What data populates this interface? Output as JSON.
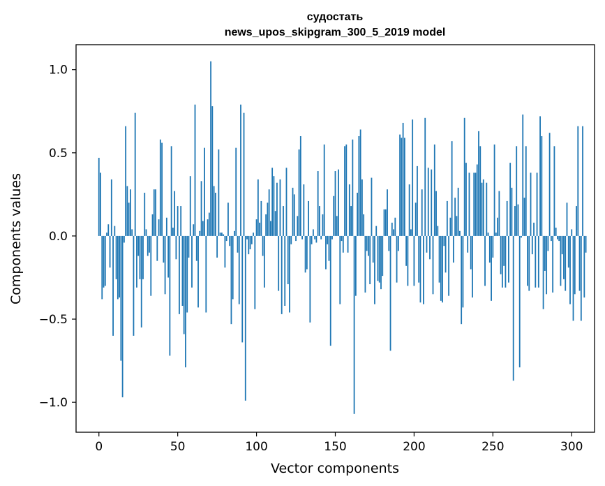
{
  "chart_data": {
    "type": "bar",
    "title_line1": "судостать",
    "title_line2": "news_upos_skipgram_300_5_2019 model",
    "xlabel": "Vector components",
    "ylabel": "Components values",
    "xlim": [
      -14.5,
      314.5
    ],
    "ylim": [
      -1.18,
      1.15
    ],
    "xticks": [
      0,
      50,
      100,
      150,
      200,
      250,
      300
    ],
    "xtick_labels": [
      "0",
      "50",
      "100",
      "150",
      "200",
      "250",
      "300"
    ],
    "yticks": [
      -1.0,
      -0.5,
      0.0,
      0.5,
      1.0
    ],
    "ytick_labels": [
      "−1.0",
      "−0.5",
      "0.0",
      "0.5",
      "1.0"
    ],
    "bar_color": "#1f77b4",
    "values": [
      0.47,
      0.38,
      -0.38,
      -0.31,
      -0.3,
      0.02,
      0.07,
      -0.19,
      0.34,
      -0.6,
      0.06,
      -0.26,
      -0.38,
      -0.37,
      -0.75,
      -0.97,
      -0.04,
      0.66,
      0.3,
      0.2,
      0.28,
      0.04,
      -0.6,
      0.74,
      -0.31,
      -0.12,
      -0.26,
      -0.55,
      -0.26,
      0.26,
      0.04,
      -0.12,
      -0.1,
      -0.36,
      0.13,
      0.28,
      0.28,
      -0.15,
      0.1,
      0.58,
      0.56,
      -0.16,
      -0.35,
      0.11,
      -0.25,
      -0.72,
      0.54,
      0.05,
      0.27,
      -0.14,
      0.18,
      -0.47,
      0.18,
      -0.42,
      -0.59,
      -0.79,
      -0.46,
      -0.13,
      0.36,
      -0.31,
      0.07,
      0.79,
      -0.15,
      -0.43,
      0.03,
      0.33,
      0.09,
      0.53,
      -0.46,
      0.1,
      0.14,
      1.05,
      0.78,
      0.3,
      0.26,
      -0.13,
      0.52,
      0.02,
      0.02,
      0.01,
      -0.19,
      -0.03,
      0.2,
      -0.06,
      -0.53,
      -0.38,
      0.03,
      0.53,
      -0.1,
      -0.41,
      0.79,
      -0.64,
      0.74,
      -0.99,
      -0.02,
      -0.11,
      -0.08,
      -0.05,
      0.02,
      -0.44,
      0.1,
      0.34,
      0.08,
      0.21,
      -0.12,
      -0.31,
      0.13,
      0.2,
      0.28,
      0.09,
      0.41,
      0.36,
      0.15,
      0.32,
      -0.33,
      0.34,
      -0.47,
      0.18,
      -0.42,
      0.41,
      -0.29,
      -0.46,
      -0.05,
      0.29,
      0.25,
      -0.03,
      0.12,
      0.52,
      0.6,
      -0.02,
      0.31,
      -0.22,
      -0.2,
      0.21,
      -0.52,
      -0.05,
      0.04,
      -0.02,
      -0.04,
      0.39,
      0.18,
      -0.02,
      0.13,
      0.55,
      -0.2,
      -0.05,
      -0.15,
      -0.66,
      -0.02,
      0.24,
      0.39,
      0.12,
      0.4,
      -0.41,
      -0.03,
      -0.1,
      0.54,
      0.55,
      -0.1,
      0.31,
      0.18,
      0.58,
      -1.07,
      -0.36,
      0.26,
      0.6,
      0.64,
      0.34,
      0.13,
      -0.34,
      -0.09,
      -0.12,
      -0.29,
      0.35,
      -0.16,
      -0.41,
      0.06,
      -0.27,
      -0.28,
      -0.32,
      -0.24,
      0.16,
      0.16,
      0.28,
      -0.09,
      -0.69,
      0.08,
      0.04,
      0.11,
      -0.28,
      -0.09,
      0.61,
      0.59,
      0.68,
      0.59,
      -0.18,
      -0.3,
      0.31,
      0.04,
      0.7,
      -0.3,
      0.2,
      0.42,
      -0.28,
      -0.4,
      0.28,
      -0.41,
      0.71,
      -0.1,
      0.41,
      -0.14,
      0.4,
      -0.35,
      0.55,
      0.27,
      0.06,
      -0.28,
      -0.39,
      -0.4,
      -0.06,
      -0.22,
      0.21,
      -0.36,
      0.11,
      0.57,
      -0.16,
      0.23,
      0.12,
      0.29,
      0.03,
      -0.53,
      -0.43,
      0.71,
      0.44,
      -0.1,
      0.38,
      -0.2,
      -0.37,
      0.38,
      0.38,
      0.43,
      0.63,
      0.54,
      0.32,
      0.34,
      -0.3,
      0.32,
      0.02,
      -0.16,
      -0.39,
      -0.13,
      0.55,
      0.02,
      0.11,
      0.27,
      -0.23,
      -0.31,
      -0.18,
      -0.31,
      0.21,
      -0.28,
      0.44,
      0.29,
      -0.87,
      0.18,
      0.54,
      0.19,
      -0.79,
      -0.01,
      0.73,
      0.23,
      0.54,
      -0.3,
      -0.33,
      0.38,
      -0.11,
      0.08,
      -0.31,
      0.38,
      -0.31,
      0.72,
      0.6,
      -0.44,
      -0.21,
      -0.35,
      -0.09,
      0.62,
      -0.03,
      -0.34,
      0.54,
      0.05,
      -0.02,
      -0.03,
      -0.3,
      -0.11,
      -0.26,
      -0.33,
      0.2,
      -0.19,
      -0.41,
      0.04,
      -0.51,
      -0.35,
      0.18,
      0.66,
      -0.33,
      -0.51,
      0.66,
      -0.37,
      -0.1
    ]
  }
}
